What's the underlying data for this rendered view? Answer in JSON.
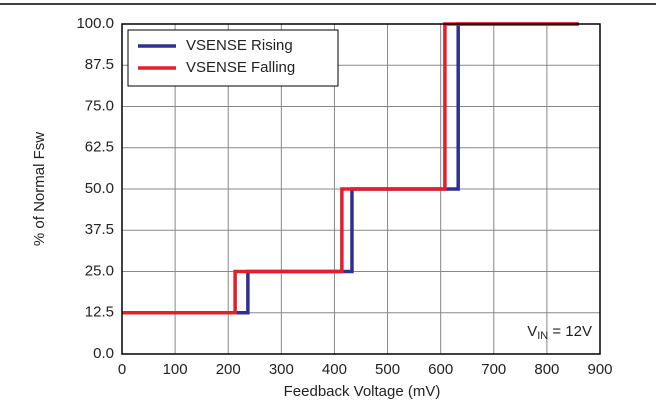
{
  "chart_data": {
    "type": "line",
    "xlabel": "Feedback Voltage (mV)",
    "ylabel": "% of Normal Fsw",
    "xlim": [
      0,
      900
    ],
    "xticks": [
      0,
      100,
      200,
      300,
      400,
      500,
      600,
      700,
      800,
      900
    ],
    "ylim": [
      0,
      100
    ],
    "yticks": [
      {
        "value": 0,
        "label": "0.0"
      },
      12.5,
      {
        "value": 25,
        "label": "25.0"
      },
      37.5,
      {
        "value": 50,
        "label": "50.0"
      },
      62.5,
      {
        "value": 75,
        "label": "75.0"
      },
      87.5,
      {
        "value": 100,
        "label": "100.0"
      }
    ],
    "grid": true,
    "legend": "upper left",
    "series": [
      {
        "name": "VSENSE Rising",
        "color": "#2e3192",
        "x": [
          0,
          237,
          237,
          433,
          433,
          633,
          633,
          860
        ],
        "values": [
          12.5,
          12.5,
          25,
          25,
          50,
          50,
          100,
          100
        ]
      },
      {
        "name": "VSENSE Falling",
        "color": "#e31e2d",
        "x": [
          0,
          213,
          213,
          414,
          414,
          608,
          608,
          860
        ],
        "values": [
          12.5,
          12.5,
          25,
          25,
          50,
          50,
          100,
          100
        ]
      }
    ],
    "annotation": {
      "main": "V",
      "sub": "IN",
      "rest": " = 12V"
    }
  }
}
